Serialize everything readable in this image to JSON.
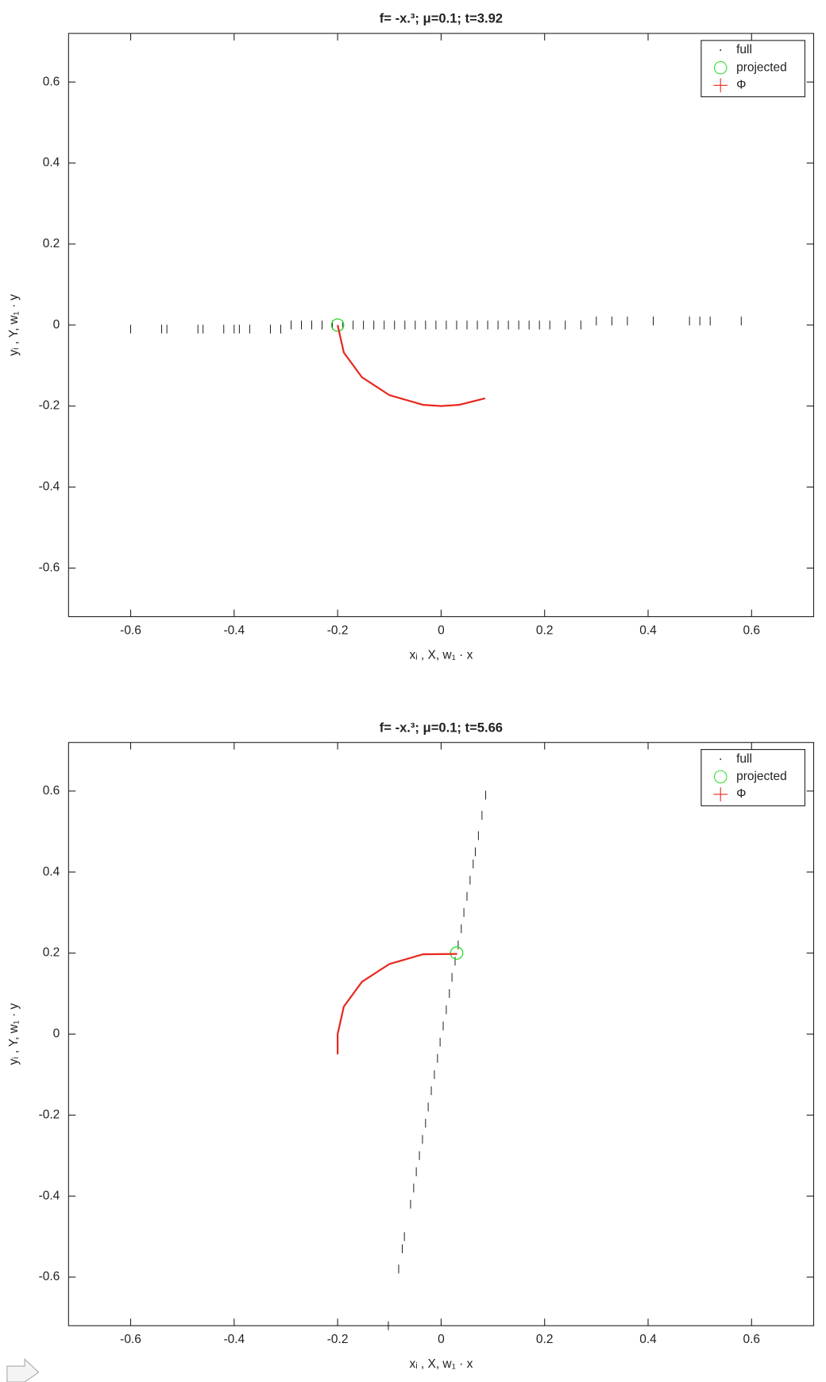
{
  "chart_data": [
    {
      "type": "scatter",
      "title": "f= -x.³;  μ=0.1; t=3.92",
      "x_label": "xᵢ , X, w₁ · x",
      "y_label": "yᵢ , Y, w₁ · y",
      "xlim": [
        -0.72,
        0.72
      ],
      "ylim": [
        -0.72,
        0.72
      ],
      "xticks": [
        -0.6,
        -0.4,
        -0.2,
        0,
        0.2,
        0.4,
        0.6
      ],
      "yticks": [
        -0.6,
        -0.4,
        -0.2,
        0,
        0.2,
        0.4,
        0.6
      ],
      "legend": "northeast",
      "series": [
        {
          "name": "full",
          "color": "#000000",
          "marker": "tick",
          "x": [
            -0.6,
            -0.54,
            -0.53,
            -0.47,
            -0.46,
            -0.42,
            -0.4,
            -0.39,
            -0.37,
            -0.33,
            -0.31,
            -0.29,
            -0.27,
            -0.25,
            -0.23,
            -0.21,
            -0.19,
            -0.17,
            -0.15,
            -0.13,
            -0.11,
            -0.09,
            -0.07,
            -0.05,
            -0.03,
            -0.01,
            0.01,
            0.03,
            0.05,
            0.07,
            0.09,
            0.11,
            0.13,
            0.15,
            0.17,
            0.19,
            0.21,
            0.24,
            0.27,
            0.3,
            0.33,
            0.36,
            0.41,
            0.48,
            0.5,
            0.52,
            0.58
          ],
          "y": [
            -0.01,
            -0.01,
            -0.01,
            -0.01,
            -0.01,
            -0.01,
            -0.01,
            -0.01,
            -0.01,
            -0.01,
            -0.01,
            0,
            0,
            0,
            0,
            0,
            0,
            0,
            0,
            0,
            0,
            0,
            0,
            0,
            0,
            0,
            0,
            0,
            0,
            0,
            0,
            0,
            0,
            0,
            0,
            0,
            0,
            0,
            0,
            0.01,
            0.01,
            0.01,
            0.01,
            0.01,
            0.01,
            0.01,
            0.01
          ]
        },
        {
          "name": "projected",
          "color": "#33dd33",
          "marker": "circle",
          "x": [
            -0.2
          ],
          "y": [
            0
          ]
        },
        {
          "name": "Φ",
          "color": "#e8281e",
          "marker": "line",
          "x": [
            -0.2,
            -0.188,
            -0.153,
            -0.1,
            -0.035,
            0,
            0.035,
            0.085
          ],
          "y": [
            0,
            -0.068,
            -0.129,
            -0.173,
            -0.197,
            -0.2,
            -0.197,
            -0.181
          ]
        }
      ]
    },
    {
      "type": "scatter",
      "title": "f= -x.³;  μ=0.1; t=5.66",
      "x_label": "xᵢ , X, w₁ · x",
      "y_label": "yᵢ , Y, w₁ · y",
      "xlim": [
        -0.72,
        0.72
      ],
      "ylim": [
        -0.72,
        0.72
      ],
      "xticks": [
        -0.6,
        -0.4,
        -0.2,
        0,
        0.2,
        0.4,
        0.6
      ],
      "yticks": [
        -0.6,
        -0.4,
        -0.2,
        0,
        0.2,
        0.4,
        0.6
      ],
      "legend": "northeast",
      "series": [
        {
          "name": "full",
          "color": "#000000",
          "marker": "tick",
          "x": [
            0.086,
            0.079,
            0.072,
            0.066,
            0.062,
            0.056,
            0.05,
            0.044,
            0.039,
            0.033,
            0.027,
            0.021,
            0.016,
            0.01,
            0.004,
            -0.002,
            -0.007,
            -0.013,
            -0.019,
            -0.025,
            -0.03,
            -0.036,
            -0.042,
            -0.048,
            -0.053,
            -0.059,
            -0.071,
            -0.075,
            -0.082,
            -0.102
          ],
          "y": [
            0.59,
            0.54,
            0.49,
            0.45,
            0.42,
            0.38,
            0.34,
            0.3,
            0.26,
            0.22,
            0.18,
            0.14,
            0.1,
            0.06,
            0.02,
            -0.02,
            -0.06,
            -0.1,
            -0.14,
            -0.18,
            -0.22,
            -0.26,
            -0.3,
            -0.34,
            -0.38,
            -0.42,
            -0.5,
            -0.53,
            -0.58,
            -0.72
          ]
        },
        {
          "name": "projected",
          "color": "#33dd33",
          "marker": "circle",
          "x": [
            0.03
          ],
          "y": [
            0.2
          ]
        },
        {
          "name": "Φ",
          "color": "#e8281e",
          "marker": "line",
          "x": [
            0.031,
            -0.035,
            -0.1,
            -0.153,
            -0.188,
            -0.2,
            -0.2
          ],
          "y": [
            0.198,
            0.197,
            0.173,
            0.129,
            0.068,
            0,
            -0.05
          ]
        }
      ]
    }
  ]
}
